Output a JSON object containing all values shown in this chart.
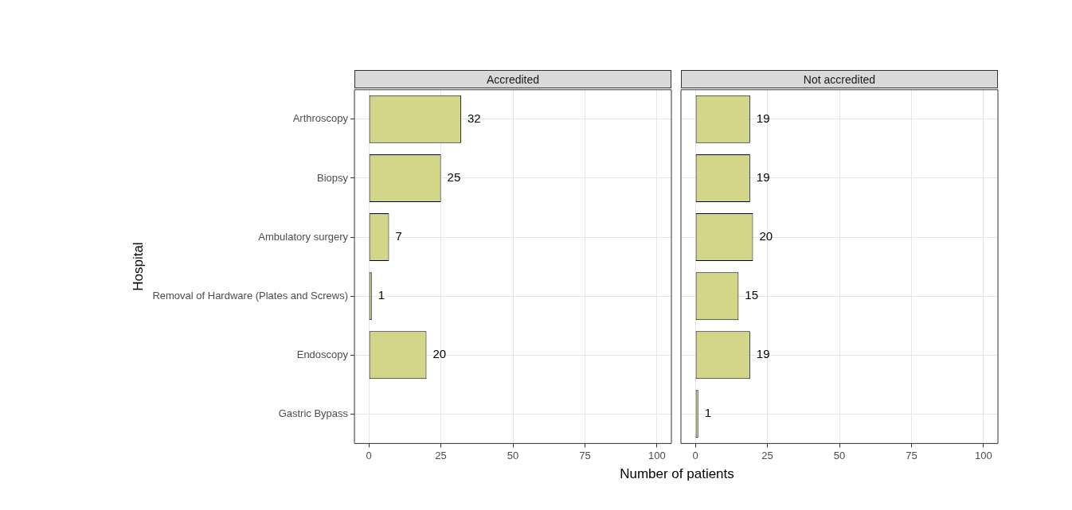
{
  "chart_data": [
    {
      "type": "bar",
      "orientation": "horizontal",
      "title": "Accredited",
      "xlabel": "Number of patients",
      "ylabel": "Hospital",
      "categories": [
        "Arthroscopy",
        "Biopsy",
        "Ambulatory surgery",
        "Removal of Hardware (Plates and Screws)",
        "Endoscopy",
        "Gastric Bypass"
      ],
      "values": [
        32,
        25,
        7,
        1,
        20,
        null
      ],
      "color": "#d3d588",
      "xlim": [
        -5,
        105
      ],
      "xticks": [
        0,
        25,
        50,
        75,
        100
      ],
      "grid": true,
      "data_labels": true
    },
    {
      "type": "bar",
      "orientation": "horizontal",
      "title": "Not accredited",
      "values": [
        19,
        19,
        20,
        15,
        19,
        1
      ],
      "color": "#d3d588",
      "xlim": [
        -5,
        105
      ],
      "xticks": [
        0,
        25,
        50,
        75,
        100
      ],
      "grid": true,
      "data_labels": true,
      "tick_labels": "x"
    }
  ]
}
